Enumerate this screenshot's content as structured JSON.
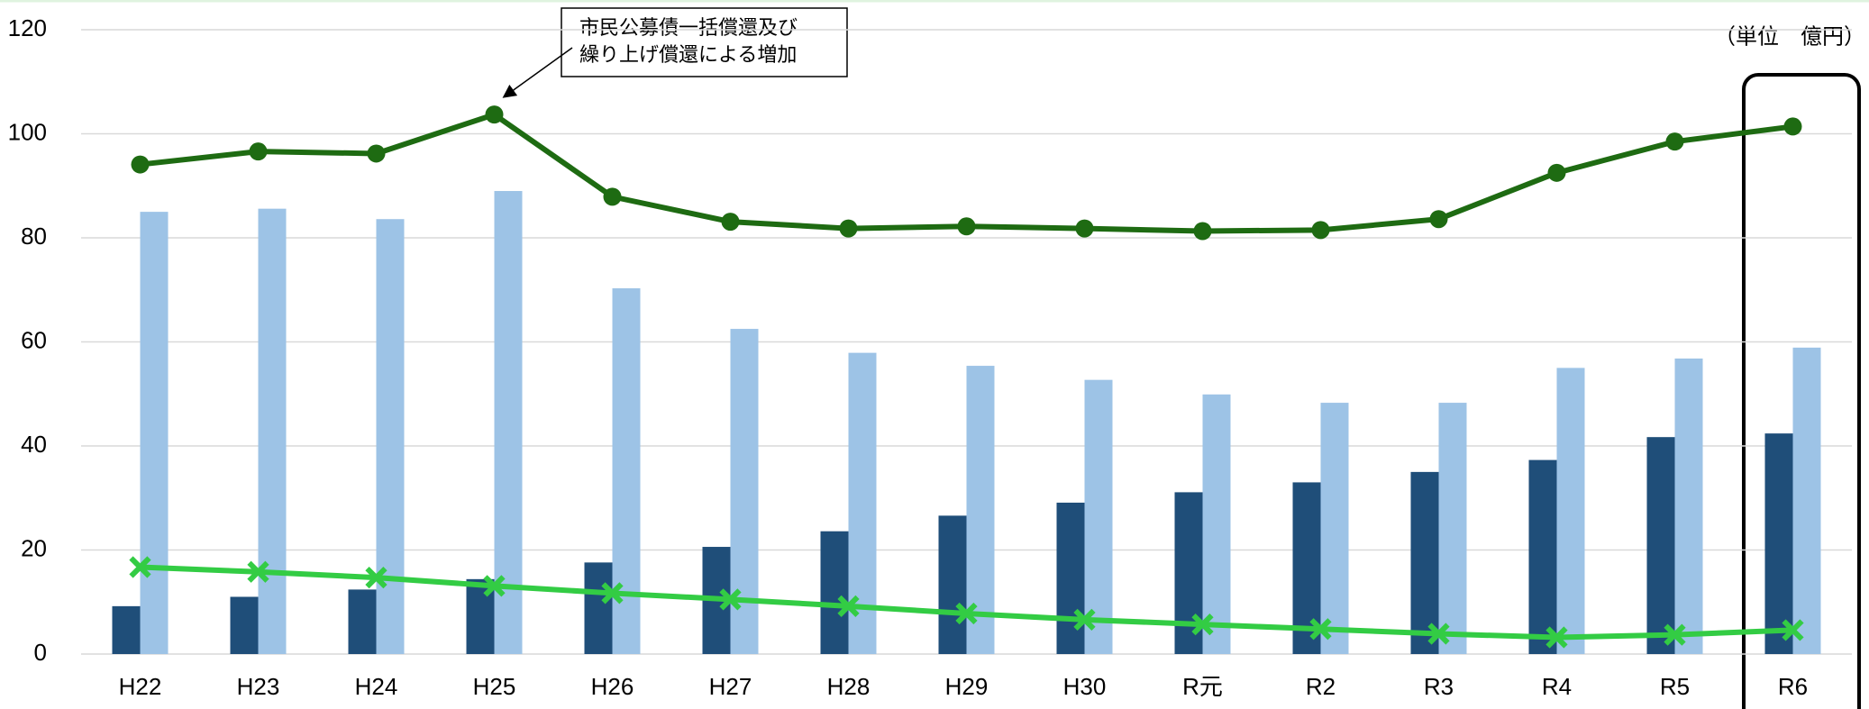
{
  "chart_data": {
    "type": "bar_line",
    "annotation": [
      "市民公募債一括償還及び",
      "繰り上げ償還による増加"
    ],
    "unit_label": "（単位　億円）",
    "categories": [
      "H22",
      "H23",
      "H24",
      "H25",
      "H26",
      "H27",
      "H28",
      "H29",
      "H30",
      "R元",
      "R2",
      "R3",
      "R4",
      "R5",
      "R6"
    ],
    "series": [
      {
        "kind": "bar",
        "color": "#1f4e79",
        "values": [
          9.2,
          11,
          12.4,
          14.4,
          17.6,
          20.6,
          23.6,
          26.6,
          29.1,
          31.1,
          33,
          35,
          37.3,
          41.7,
          42.4
        ]
      },
      {
        "kind": "bar",
        "color": "#9dc3e6",
        "values": [
          85,
          85.6,
          83.6,
          89,
          70.3,
          62.5,
          57.9,
          55.4,
          52.7,
          49.9,
          48.3,
          48.3,
          55,
          56.8,
          58.9
        ]
      },
      {
        "kind": "line",
        "marker": "circle",
        "color": "#1e6b12",
        "values": [
          94.1,
          96.6,
          96.2,
          103.7,
          87.9,
          83.1,
          81.8,
          82.2,
          81.8,
          81.3,
          81.5,
          83.6,
          92.5,
          98.5,
          101.4
        ]
      },
      {
        "kind": "line",
        "marker": "x",
        "color": "#33cc44",
        "values": [
          16.7,
          15.8,
          14.7,
          13.1,
          11.7,
          10.5,
          9.2,
          7.8,
          6.6,
          5.7,
          4.8,
          3.9,
          3.2,
          3.7,
          4.6
        ]
      }
    ],
    "ylim": [
      0,
      120
    ],
    "yticks": [
      0,
      20,
      40,
      60,
      80,
      100,
      120
    ],
    "grid": true
  }
}
